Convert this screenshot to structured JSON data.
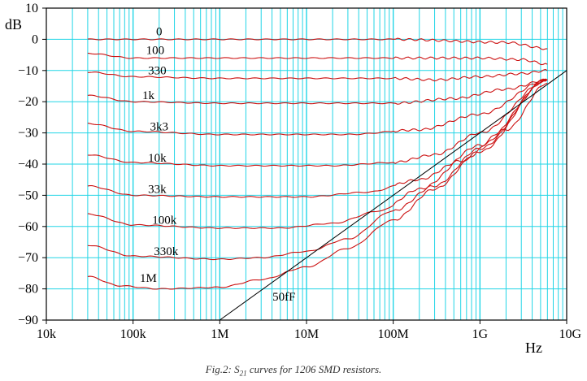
{
  "chart_data": {
    "type": "line",
    "title": "",
    "xlabel": "Hz",
    "ylabel": "dB",
    "x_scale": "log",
    "xlim": [
      10000,
      10000000000
    ],
    "ylim": [
      -90,
      10
    ],
    "x_tick_values": [
      10000,
      100000,
      1000000,
      10000000,
      100000000,
      1000000000,
      10000000000
    ],
    "x_tick_labels": [
      "10k",
      "100k",
      "1M",
      "10M",
      "100M",
      "1G",
      "10G"
    ],
    "y_tick_values": [
      10,
      0,
      -10,
      -20,
      -30,
      -40,
      -50,
      -60,
      -70,
      -80,
      -90
    ],
    "y_tick_labels": [
      "10",
      "0",
      "−10",
      "−20",
      "−30",
      "−40",
      "−50",
      "−60",
      "−70",
      "−80",
      "−90"
    ],
    "grid": true,
    "grid_color": "#22d5e6",
    "curve_color": "#cc1111",
    "reference_color": "#000000",
    "series": [
      {
        "name": "0",
        "x": [
          30000,
          1000000,
          100000000,
          2000000000,
          6000000000
        ],
        "y": [
          0,
          0,
          0,
          -1,
          -3
        ]
      },
      {
        "name": "100",
        "x": [
          30000,
          100000,
          1000000,
          100000000,
          1000000000,
          3000000000,
          6000000000
        ],
        "y": [
          -4.5,
          -6,
          -6,
          -6,
          -6,
          -6.5,
          -8
        ]
      },
      {
        "name": "330",
        "x": [
          30000,
          100000,
          1000000,
          100000000,
          300000000,
          1000000000,
          3000000000,
          6000000000
        ],
        "y": [
          -10.5,
          -12,
          -12.5,
          -12.5,
          -13,
          -12,
          -11,
          -10
        ]
      },
      {
        "name": "1k",
        "x": [
          30000,
          100000,
          1000000,
          100000000,
          500000000,
          2000000000,
          6000000000
        ],
        "y": [
          -18,
          -20,
          -20.5,
          -20.5,
          -19,
          -16,
          -13
        ]
      },
      {
        "name": "3k3",
        "x": [
          30000,
          100000,
          1000000,
          30000000,
          200000000,
          1000000000,
          6000000000
        ],
        "y": [
          -27,
          -29.5,
          -30.5,
          -30.5,
          -29,
          -24,
          -13
        ]
      },
      {
        "name": "10k",
        "x": [
          30000,
          100000,
          1000000,
          20000000,
          100000000,
          300000000,
          1000000000,
          6000000000
        ],
        "y": [
          -37,
          -39.5,
          -40.5,
          -40.5,
          -39.5,
          -37,
          -30,
          -13
        ]
      },
      {
        "name": "33k",
        "x": [
          30000,
          100000,
          1000000,
          10000000,
          50000000,
          200000000,
          600000000,
          2000000000,
          6000000000
        ],
        "y": [
          -47,
          -50,
          -50.5,
          -50.5,
          -49,
          -45,
          -39,
          -29,
          -14
        ]
      },
      {
        "name": "100k",
        "x": [
          30000,
          100000,
          1000000,
          5000000,
          20000000,
          70000000,
          200000000,
          1000000000,
          6000000000
        ],
        "y": [
          -56,
          -59.5,
          -60.5,
          -60.5,
          -59,
          -55,
          -48,
          -34,
          -13
        ]
      },
      {
        "name": "330k",
        "x": [
          30000,
          100000,
          1000000,
          3000000,
          10000000,
          30000000,
          100000000,
          300000000,
          1000000000,
          6000000000
        ],
        "y": [
          -66,
          -69.5,
          -70.5,
          -70,
          -68,
          -64,
          -55,
          -47,
          -35,
          -13
        ]
      },
      {
        "name": "1M",
        "x": [
          30000,
          70000,
          200000,
          1000000,
          3000000,
          10000000,
          30000000,
          100000000,
          300000000,
          1000000000,
          6000000000
        ],
        "y": [
          -76,
          -79,
          -80,
          -79.5,
          -77,
          -73,
          -67,
          -58,
          -48,
          -36,
          -13
        ]
      },
      {
        "name": "50fF",
        "x": [
          1000000,
          10000000000
        ],
        "y": [
          -90,
          -10
        ]
      }
    ],
    "annotations": [
      "0",
      "100",
      "330",
      "1k",
      "3k3",
      "10k",
      "33k",
      "100k",
      "330k",
      "1M",
      "50fF"
    ]
  },
  "caption": {
    "prefix": "Fig.2: S",
    "subscript": "21",
    "suffix": " curves for 1206 SMD resistors."
  }
}
